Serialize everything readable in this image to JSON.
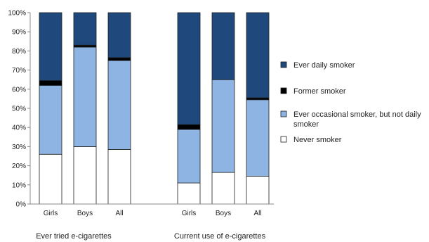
{
  "chart_data": {
    "type": "bar",
    "stacked": true,
    "categories": [
      "Girls",
      "Boys",
      "All",
      "Girls",
      "Boys",
      "All"
    ],
    "groups": [
      {
        "label": "Ever tried e-cigarettes",
        "categories": [
          "Girls",
          "Boys",
          "All"
        ]
      },
      {
        "label": "Current use of e-cigarettes",
        "categories": [
          "Girls",
          "Boys",
          "All"
        ]
      }
    ],
    "series": [
      {
        "name": "Never smoker",
        "color": "#ffffff",
        "values": [
          26,
          30,
          28.5,
          11,
          16.5,
          14.5
        ]
      },
      {
        "name": "Ever occasional smoker, but not daily smoker",
        "color": "#8eb4e3",
        "values": [
          36,
          52,
          46.5,
          28,
          48.5,
          40
        ]
      },
      {
        "name": "Former smoker",
        "color": "#000000",
        "values": [
          2.5,
          1,
          1.5,
          2.5,
          0,
          1
        ]
      },
      {
        "name": "Ever daily smoker",
        "color": "#1f497d",
        "values": [
          35.5,
          17,
          23.5,
          58.5,
          35,
          44.5
        ]
      }
    ],
    "legend_order": [
      "Ever daily smoker",
      "Former smoker",
      "Ever occasional smoker, but not daily smoker",
      "Never smoker"
    ],
    "y_ticks": [
      "0%",
      "10%",
      "20%",
      "30%",
      "40%",
      "50%",
      "60%",
      "70%",
      "80%",
      "90%",
      "100%"
    ],
    "ylim": [
      0,
      100
    ],
    "legend_position": "right",
    "grid": false,
    "title": "",
    "xlabel": "",
    "ylabel": ""
  }
}
